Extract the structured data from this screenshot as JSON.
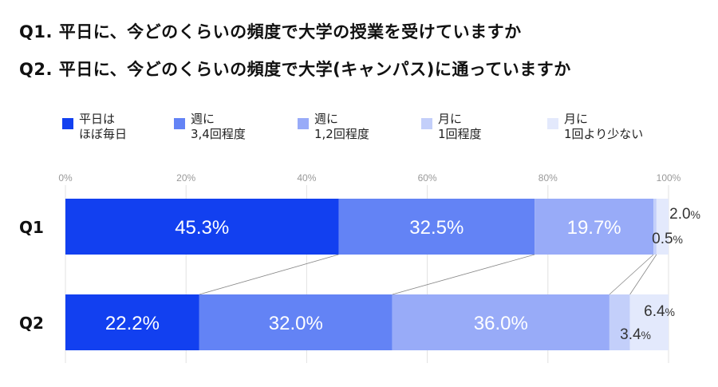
{
  "titles": {
    "q1": "Q1. 平日に、今どのくらいの頻度で大学の授業を受けていますか",
    "q2": "Q2. 平日に、今どのくらいの頻度で大学(キャンパス)に通っていますか"
  },
  "legend": [
    {
      "label": "平日は\nほぼ毎日",
      "color": "#1240f0"
    },
    {
      "label": "週に\n3,4回程度",
      "color": "#6383f5"
    },
    {
      "label": "週に\n1,2回程度",
      "color": "#98abf8"
    },
    {
      "label": "月に\n1回程度",
      "color": "#c3cffa"
    },
    {
      "label": "月に\n1回より少ない",
      "color": "#e3e9fc"
    }
  ],
  "chart_data": {
    "type": "bar",
    "orientation": "horizontal",
    "stacked": true,
    "title": "",
    "categories": [
      "Q1",
      "Q2"
    ],
    "series": [
      {
        "name": "平日はほぼ毎日",
        "color": "#1240f0",
        "values": [
          45.3,
          22.2
        ]
      },
      {
        "name": "週に3,4回程度",
        "color": "#6383f5",
        "values": [
          32.5,
          32.0
        ]
      },
      {
        "name": "週に1,2回程度",
        "color": "#98abf8",
        "values": [
          19.7,
          36.0
        ]
      },
      {
        "name": "月に1回程度",
        "color": "#c3cffa",
        "values": [
          0.5,
          3.4
        ]
      },
      {
        "name": "月に1回より少ない",
        "color": "#e3e9fc",
        "values": [
          2.0,
          6.4
        ]
      }
    ],
    "labels": {
      "Q1": [
        "45.3%",
        "32.5%",
        "19.7%",
        "0.5%",
        "2.0%"
      ],
      "Q2": [
        "22.2%",
        "32.0%",
        "36.0%",
        "3.4%",
        "6.4%"
      ]
    },
    "xticks": [
      "0%",
      "20%",
      "40%",
      "60%",
      "80%",
      "100%"
    ],
    "xlim": [
      0,
      100
    ],
    "xlabel": "",
    "ylabel": "",
    "grid": true,
    "legend_position": "top",
    "connector_lines": true
  }
}
